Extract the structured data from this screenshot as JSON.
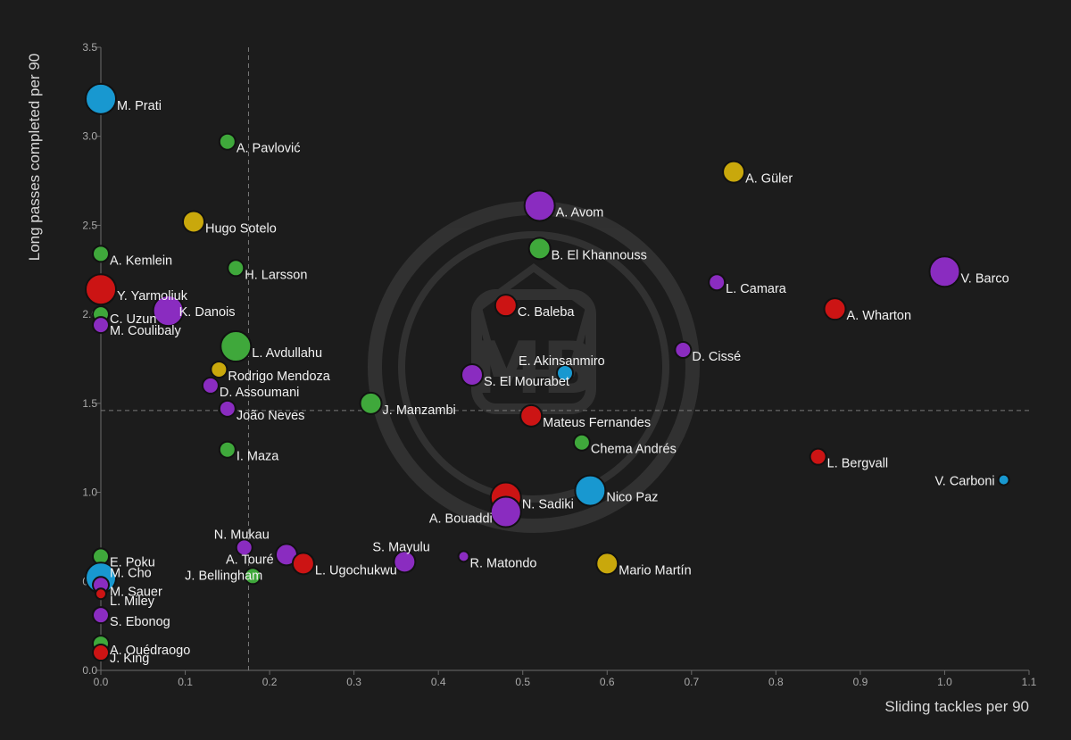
{
  "chart_data": {
    "type": "scatter",
    "title": "",
    "xlabel": "Sliding tackles per 90",
    "ylabel": "Long passes completed per 90",
    "xlim": [
      0,
      1.1
    ],
    "ylim": [
      0,
      3.5
    ],
    "xticks": [
      "0.0",
      "0.1",
      "0.2",
      "0.3",
      "0.4",
      "0.5",
      "0.6",
      "0.7",
      "0.8",
      "0.9",
      "1.0",
      "1.1"
    ],
    "yticks": [
      "0.0",
      "0.5",
      "1.0",
      "1.5",
      "2.0",
      "2.5",
      "3.0",
      "3.5"
    ],
    "reference_lines": {
      "x": 0.175,
      "y": 1.46
    },
    "watermark": "MB",
    "colors": {
      "green": "#3fa83b",
      "purple": "#8a2cc0",
      "red": "#cc1414",
      "yellow": "#c9a80c",
      "blue": "#1898d0"
    },
    "points": [
      {
        "name": "M. Prati",
        "x": 0.0,
        "y": 3.21,
        "color": "blue",
        "size": "large"
      },
      {
        "name": "A. Pavlović",
        "x": 0.15,
        "y": 2.97,
        "color": "green",
        "size": "small"
      },
      {
        "name": "A. Güler",
        "x": 0.75,
        "y": 2.8,
        "color": "yellow",
        "size": "medium"
      },
      {
        "name": "A. Avom",
        "x": 0.52,
        "y": 2.61,
        "color": "purple",
        "size": "large"
      },
      {
        "name": "Hugo Sotelo",
        "x": 0.11,
        "y": 2.52,
        "color": "yellow",
        "size": "medium"
      },
      {
        "name": "B. El Khannouss",
        "x": 0.52,
        "y": 2.37,
        "color": "green",
        "size": "medium"
      },
      {
        "name": "A. Kemlein",
        "x": 0.0,
        "y": 2.34,
        "color": "green",
        "size": "small"
      },
      {
        "name": "H. Larsson",
        "x": 0.16,
        "y": 2.26,
        "color": "green",
        "size": "small"
      },
      {
        "name": "V. Barco",
        "x": 1.0,
        "y": 2.24,
        "color": "purple",
        "size": "large"
      },
      {
        "name": "L. Camara",
        "x": 0.73,
        "y": 2.18,
        "color": "purple",
        "size": "small"
      },
      {
        "name": "Y. Yarmoliuk",
        "x": 0.0,
        "y": 2.14,
        "color": "red",
        "size": "large"
      },
      {
        "name": "C. Baleba",
        "x": 0.48,
        "y": 2.05,
        "color": "red",
        "size": "medium"
      },
      {
        "name": "A. Wharton",
        "x": 0.87,
        "y": 2.03,
        "color": "red",
        "size": "medium"
      },
      {
        "name": "K. Danois",
        "x": 0.08,
        "y": 2.02,
        "color": "purple",
        "size": "large"
      },
      {
        "name": "C. Uzun",
        "x": 0.0,
        "y": 2.0,
        "color": "green",
        "size": "small"
      },
      {
        "name": "M. Coulibaly",
        "x": 0.0,
        "y": 1.94,
        "color": "purple",
        "size": "small"
      },
      {
        "name": "L. Avdullahu",
        "x": 0.16,
        "y": 1.82,
        "color": "green",
        "size": "large"
      },
      {
        "name": "D. Cissé",
        "x": 0.69,
        "y": 1.8,
        "color": "purple",
        "size": "small"
      },
      {
        "name": "E. Akinsanmiro",
        "x": 0.55,
        "y": 1.67,
        "color": "blue",
        "size": "small"
      },
      {
        "name": "Rodrigo Mendoza",
        "x": 0.14,
        "y": 1.69,
        "color": "yellow",
        "size": "small"
      },
      {
        "name": "S. El Mourabet",
        "x": 0.44,
        "y": 1.66,
        "color": "purple",
        "size": "medium"
      },
      {
        "name": "D. Assoumani",
        "x": 0.13,
        "y": 1.6,
        "color": "purple",
        "size": "small"
      },
      {
        "name": "J. Manzambi",
        "x": 0.32,
        "y": 1.5,
        "color": "green",
        "size": "medium"
      },
      {
        "name": "João Neves",
        "x": 0.15,
        "y": 1.47,
        "color": "purple",
        "size": "small"
      },
      {
        "name": "Mateus Fernandes",
        "x": 0.51,
        "y": 1.43,
        "color": "red",
        "size": "medium"
      },
      {
        "name": "Chema Andrés",
        "x": 0.57,
        "y": 1.28,
        "color": "green",
        "size": "small"
      },
      {
        "name": "I. Maza",
        "x": 0.15,
        "y": 1.24,
        "color": "green",
        "size": "small"
      },
      {
        "name": "L. Bergvall",
        "x": 0.85,
        "y": 1.2,
        "color": "red",
        "size": "small"
      },
      {
        "name": "V. Carboni",
        "x": 1.07,
        "y": 1.07,
        "color": "blue",
        "size": "tiny"
      },
      {
        "name": "Nico Paz",
        "x": 0.58,
        "y": 1.01,
        "color": "blue",
        "size": "large"
      },
      {
        "name": "N. Sadiki",
        "x": 0.48,
        "y": 0.97,
        "color": "red",
        "size": "large"
      },
      {
        "name": "A. Bouaddi",
        "x": 0.48,
        "y": 0.89,
        "color": "purple",
        "size": "large"
      },
      {
        "name": "N. Mukau",
        "x": 0.17,
        "y": 0.69,
        "color": "purple",
        "size": "small"
      },
      {
        "name": "A. Touré",
        "x": 0.22,
        "y": 0.65,
        "color": "purple",
        "size": "medium"
      },
      {
        "name": "S. Mayulu",
        "x": 0.36,
        "y": 0.61,
        "color": "purple",
        "size": "medium"
      },
      {
        "name": "R. Matondo",
        "x": 0.43,
        "y": 0.64,
        "color": "purple",
        "size": "tiny"
      },
      {
        "name": "L. Ugochukwu",
        "x": 0.24,
        "y": 0.6,
        "color": "red",
        "size": "medium"
      },
      {
        "name": "Mario Martín",
        "x": 0.6,
        "y": 0.6,
        "color": "yellow",
        "size": "medium"
      },
      {
        "name": "E. Poku",
        "x": 0.0,
        "y": 0.64,
        "color": "green",
        "size": "small"
      },
      {
        "name": "J. Bellingham",
        "x": 0.18,
        "y": 0.53,
        "color": "green",
        "size": "small"
      },
      {
        "name": "M. Cho",
        "x": 0.0,
        "y": 0.52,
        "color": "blue",
        "size": "large"
      },
      {
        "name": "M. Sauer",
        "x": 0.0,
        "y": 0.48,
        "color": "purple",
        "size": "small"
      },
      {
        "name": "L. Miley",
        "x": 0.0,
        "y": 0.43,
        "color": "red",
        "size": "tiny"
      },
      {
        "name": "S. Ebonog",
        "x": 0.0,
        "y": 0.31,
        "color": "purple",
        "size": "small"
      },
      {
        "name": "A. Ouédraogo",
        "x": 0.0,
        "y": 0.15,
        "color": "green",
        "size": "small"
      },
      {
        "name": "J. King",
        "x": 0.0,
        "y": 0.1,
        "color": "red",
        "size": "small"
      }
    ]
  }
}
